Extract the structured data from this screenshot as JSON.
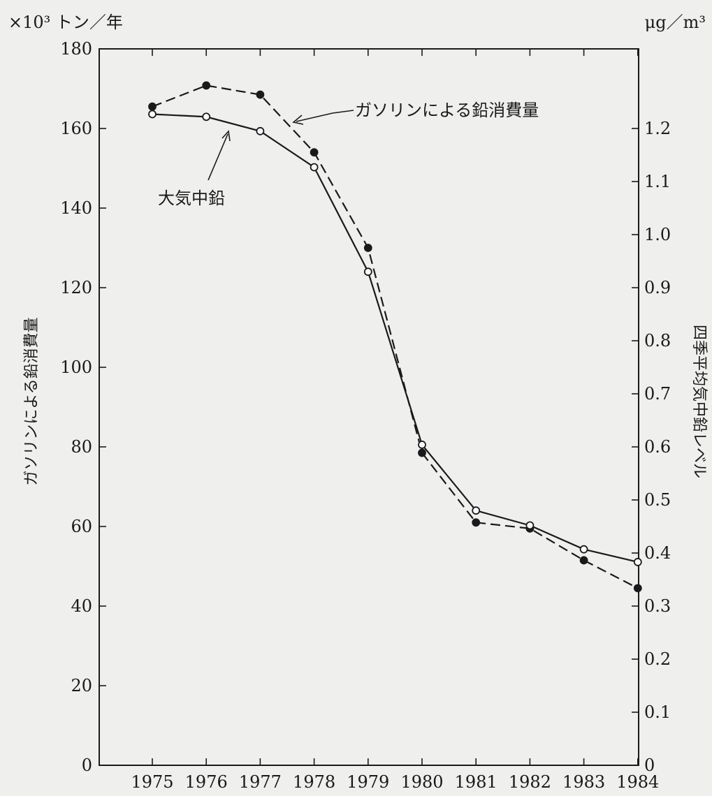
{
  "chart_data": {
    "type": "line",
    "x": [
      1975,
      1976,
      1977,
      1978,
      1979,
      1980,
      1981,
      1982,
      1983,
      1984
    ],
    "x_tick_labels": [
      "1975",
      "1976",
      "1977",
      "1978",
      "1979",
      "1980",
      "1981",
      "1982",
      "1983",
      "1984"
    ],
    "left_axis": {
      "unit": "×10³ トン／年",
      "title": "ガソリンによる鉛消費量",
      "ylim": [
        0,
        180
      ],
      "ticks": [
        0,
        20,
        40,
        60,
        80,
        100,
        120,
        140,
        160,
        180
      ],
      "tick_labels": [
        "0",
        "20",
        "40",
        "60",
        "80",
        "100",
        "120",
        "140",
        "160",
        "180"
      ]
    },
    "right_axis": {
      "unit": "μg／m³",
      "title": "四季平均気中鉛レベル",
      "ylim": [
        0,
        1.35
      ],
      "ticks": [
        0,
        0.1,
        0.2,
        0.3,
        0.4,
        0.5,
        0.6,
        0.7,
        0.8,
        0.9,
        1.0,
        1.1,
        1.2
      ],
      "tick_labels": [
        "0",
        "0.1",
        "0.2",
        "0.3",
        "0.4",
        "0.5",
        "0.6",
        "0.7",
        "0.8",
        "0.9",
        "1.0",
        "1.1",
        "1.2"
      ]
    },
    "series": [
      {
        "name": "ガソリンによる鉛消費量",
        "axis": "left",
        "line_style": "dashed",
        "marker": "filled-circle",
        "values": [
          165.5,
          170.8,
          168.5,
          154,
          130,
          78.5,
          61,
          59.5,
          51.5,
          44.5
        ]
      },
      {
        "name": "大気中鉛",
        "axis": "right",
        "line_style": "solid",
        "marker": "open-circle",
        "values": [
          1.227,
          1.222,
          1.195,
          1.127,
          0.93,
          0.604,
          0.48,
          0.452,
          0.407,
          0.383
        ]
      }
    ],
    "grid": false,
    "legend": "inline-annotations"
  }
}
